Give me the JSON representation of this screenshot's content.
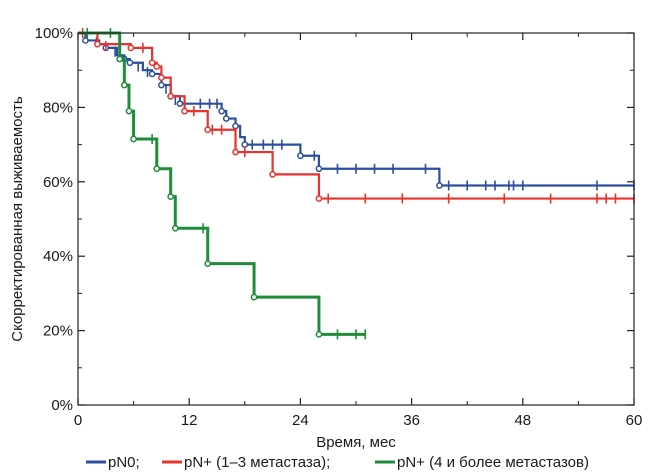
{
  "chart_data": {
    "type": "line",
    "xlabel": "Время, мес",
    "ylabel": "Скорректированная выживаемость",
    "xlim": [
      0,
      60
    ],
    "ylim": [
      0,
      100
    ],
    "x_ticks": [
      0,
      12,
      24,
      36,
      48,
      60
    ],
    "x_tick_labels": [
      "0",
      "12",
      "24",
      "36",
      "48",
      "60"
    ],
    "y_ticks": [
      0,
      20,
      40,
      60,
      80,
      100
    ],
    "y_tick_labels": [
      "0%",
      "20%",
      "40%",
      "60%",
      "80%",
      "100%"
    ],
    "grid": false,
    "legend_position": "bottom",
    "series": [
      {
        "name": "pN0;",
        "color": "#2b4f9e",
        "steps": [
          [
            0,
            100
          ],
          [
            0.8,
            98
          ],
          [
            2.3,
            97
          ],
          [
            3,
            96
          ],
          [
            4.2,
            94
          ],
          [
            5,
            93
          ],
          [
            5.6,
            92
          ],
          [
            7,
            90
          ],
          [
            8,
            89
          ],
          [
            9,
            86
          ],
          [
            10,
            83
          ],
          [
            11,
            81
          ],
          [
            15.5,
            79
          ],
          [
            16,
            77
          ],
          [
            17,
            75
          ],
          [
            17.5,
            72
          ],
          [
            18,
            70
          ],
          [
            24,
            67
          ],
          [
            26,
            63.5
          ],
          [
            39,
            59
          ],
          [
            60,
            59
          ]
        ],
        "open_marks": [
          [
            0.8,
            98
          ],
          [
            3,
            96
          ],
          [
            5,
            93
          ],
          [
            5.6,
            92
          ],
          [
            8,
            89
          ],
          [
            9,
            86
          ],
          [
            10,
            83
          ],
          [
            11,
            81
          ],
          [
            15.5,
            79
          ],
          [
            16,
            77
          ],
          [
            17,
            75
          ],
          [
            18,
            70
          ],
          [
            24,
            67
          ],
          [
            26,
            63.5
          ],
          [
            39,
            59
          ]
        ],
        "censor_marks": [
          [
            2,
            97.5
          ],
          [
            4,
            95
          ],
          [
            6.5,
            91
          ],
          [
            7.5,
            89.5
          ],
          [
            9.5,
            85
          ],
          [
            10.5,
            82
          ],
          [
            13.2,
            81
          ],
          [
            14.2,
            81
          ],
          [
            15,
            81
          ],
          [
            18.8,
            70
          ],
          [
            20,
            70
          ],
          [
            21,
            70
          ],
          [
            22,
            70
          ],
          [
            25.5,
            67
          ],
          [
            28,
            63.5
          ],
          [
            30,
            63.5
          ],
          [
            32,
            63.5
          ],
          [
            34,
            63.5
          ],
          [
            37.5,
            63.5
          ],
          [
            40,
            59
          ],
          [
            42,
            59
          ],
          [
            44,
            59
          ],
          [
            45,
            59
          ],
          [
            46.5,
            59
          ],
          [
            47,
            59
          ],
          [
            48,
            59
          ],
          [
            56,
            59
          ],
          [
            60,
            59
          ]
        ]
      },
      {
        "name": "pN+ (1–3 метастаза);",
        "color": "#e8322b",
        "steps": [
          [
            0,
            100
          ],
          [
            0.5,
            100
          ],
          [
            2.1,
            97
          ],
          [
            5.7,
            96
          ],
          [
            8,
            92
          ],
          [
            8.5,
            91
          ],
          [
            9,
            88
          ],
          [
            10,
            83
          ],
          [
            11.5,
            79
          ],
          [
            14,
            74
          ],
          [
            17,
            68
          ],
          [
            21,
            62
          ],
          [
            26,
            55.5
          ],
          [
            60,
            55.5
          ]
        ],
        "open_marks": [
          [
            2.1,
            97
          ],
          [
            5.7,
            96
          ],
          [
            8,
            92
          ],
          [
            8.5,
            91
          ],
          [
            9,
            88
          ],
          [
            10,
            83
          ],
          [
            11.5,
            79
          ],
          [
            14,
            74
          ],
          [
            17,
            68
          ],
          [
            21,
            62
          ],
          [
            26,
            55.5
          ]
        ],
        "censor_marks": [
          [
            0.5,
            100
          ],
          [
            3,
            96.5
          ],
          [
            4.5,
            96
          ],
          [
            7,
            96
          ],
          [
            12.5,
            79
          ],
          [
            14.5,
            74
          ],
          [
            15.5,
            74
          ],
          [
            18,
            68
          ],
          [
            27,
            55.5
          ],
          [
            31,
            55.5
          ],
          [
            35,
            55.5
          ],
          [
            40,
            55.5
          ],
          [
            46,
            55.5
          ],
          [
            51,
            55.5
          ],
          [
            56,
            55.5
          ],
          [
            57,
            55.5
          ],
          [
            58,
            55.5
          ],
          [
            60,
            55.5
          ]
        ]
      },
      {
        "name": "pN+ (4 и более метастазов)",
        "color": "#1f8c3a",
        "steps": [
          [
            0,
            100
          ],
          [
            4.5,
            93
          ],
          [
            5,
            86
          ],
          [
            5.5,
            79
          ],
          [
            6,
            71.5
          ],
          [
            8.5,
            63.5
          ],
          [
            10,
            56
          ],
          [
            10.5,
            47.5
          ],
          [
            14,
            38
          ],
          [
            19,
            29
          ],
          [
            26,
            19
          ],
          [
            31,
            19
          ]
        ],
        "open_marks": [
          [
            4.5,
            93
          ],
          [
            5,
            86
          ],
          [
            5.5,
            79
          ],
          [
            6,
            71.5
          ],
          [
            8.5,
            63.5
          ],
          [
            10,
            56
          ],
          [
            10.5,
            47.5
          ],
          [
            14,
            38
          ],
          [
            19,
            29
          ],
          [
            26,
            19
          ]
        ],
        "censor_marks": [
          [
            1,
            100
          ],
          [
            3.5,
            100
          ],
          [
            8,
            71.5
          ],
          [
            13.5,
            47.5
          ],
          [
            28,
            19
          ],
          [
            30,
            19
          ],
          [
            31,
            19
          ]
        ]
      }
    ]
  }
}
